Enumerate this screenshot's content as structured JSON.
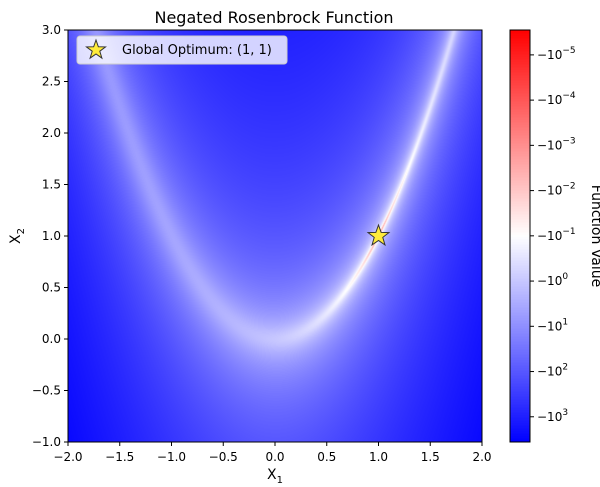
{
  "chart_data": {
    "type": "heatmap",
    "title": "Negated Rosenbrock Function",
    "xlabel": "X",
    "xlabel_sub": "1",
    "ylabel": "X",
    "ylabel_sub": "2",
    "function": "-((1 - x1)^2 + 100 * (x2 - x1^2)^2)",
    "xlim": [
      -2.0,
      2.0
    ],
    "ylim": [
      -1.0,
      3.0
    ],
    "x_ticks": [
      -2.0,
      -1.5,
      -1.0,
      -0.5,
      0.0,
      0.5,
      1.0,
      1.5,
      2.0
    ],
    "x_tick_labels": [
      "−2.0",
      "−1.5",
      "−1.0",
      "−0.5",
      "0.0",
      "0.5",
      "1.0",
      "1.5",
      "2.0"
    ],
    "y_ticks": [
      -1.0,
      -0.5,
      0.0,
      0.5,
      1.0,
      1.5,
      2.0,
      2.5,
      3.0
    ],
    "y_tick_labels": [
      "−1.0",
      "−0.5",
      "0.0",
      "0.5",
      "1.0",
      "1.5",
      "2.0",
      "2.5",
      "3.0"
    ],
    "colormap": "bwr",
    "color_scale": "symlog",
    "color_range": [
      -3610,
      -4.5e-06
    ],
    "colorbar": {
      "label": "Function Value",
      "ticks": [
        {
          "base": "−10",
          "exp": "−5",
          "value": -1e-05
        },
        {
          "base": "−10",
          "exp": "−4",
          "value": -0.0001
        },
        {
          "base": "−10",
          "exp": "−3",
          "value": -0.001
        },
        {
          "base": "−10",
          "exp": "−2",
          "value": -0.01
        },
        {
          "base": "−10",
          "exp": "−1",
          "value": -0.1
        },
        {
          "base": "−10",
          "exp": "0",
          "value": -1
        },
        {
          "base": "−10",
          "exp": "1",
          "value": -10
        },
        {
          "base": "−10",
          "exp": "2",
          "value": -100
        },
        {
          "base": "−10",
          "exp": "3",
          "value": -1000
        }
      ]
    },
    "marker": {
      "x": 1.0,
      "y": 1.0,
      "shape": "star",
      "color": "#ffeb3b",
      "edge_color": "#333333"
    },
    "legend": {
      "position": "upper-left",
      "entries": [
        "Global Optimum: (1, 1)"
      ]
    },
    "grid": false
  }
}
